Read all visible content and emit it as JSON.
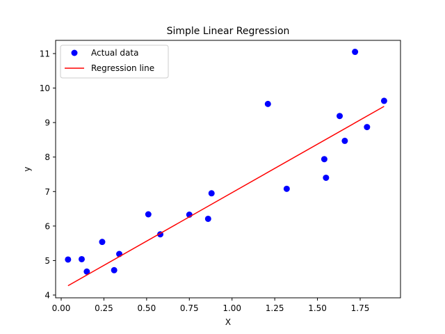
{
  "chart_data": {
    "type": "scatter",
    "title": "Simple Linear Regression",
    "xlabel": "X",
    "ylabel": "y",
    "xlim": [
      -0.05,
      1.98
    ],
    "ylim": [
      3.9,
      11.35
    ],
    "xticks": [
      0.0,
      0.25,
      0.5,
      0.75,
      1.0,
      1.25,
      1.5,
      1.75
    ],
    "xtick_labels": [
      "0.00",
      "0.25",
      "0.50",
      "0.75",
      "1.00",
      "1.25",
      "1.50",
      "1.75"
    ],
    "yticks": [
      4,
      5,
      6,
      7,
      8,
      9,
      10,
      11
    ],
    "ytick_labels": [
      "4",
      "5",
      "6",
      "7",
      "8",
      "9",
      "10",
      "11"
    ],
    "grid": false,
    "legend_position": "upper left",
    "series": [
      {
        "name": "Actual data",
        "kind": "scatter",
        "color": "#0000ff",
        "x": [
          0.04,
          0.12,
          0.15,
          0.24,
          0.31,
          0.34,
          0.51,
          0.58,
          0.75,
          0.86,
          0.88,
          1.21,
          1.32,
          1.54,
          1.55,
          1.63,
          1.66,
          1.72,
          1.79,
          1.89
        ],
        "y": [
          5.03,
          5.04,
          4.68,
          5.54,
          4.72,
          5.19,
          6.34,
          5.76,
          6.33,
          6.21,
          6.95,
          9.54,
          7.08,
          7.94,
          7.4,
          9.19,
          8.47,
          11.05,
          8.87,
          9.63
        ]
      },
      {
        "name": "Regression line",
        "kind": "line",
        "color": "#ff0000",
        "x": [
          0.04,
          1.89
        ],
        "y": [
          4.27,
          9.47
        ]
      }
    ]
  }
}
